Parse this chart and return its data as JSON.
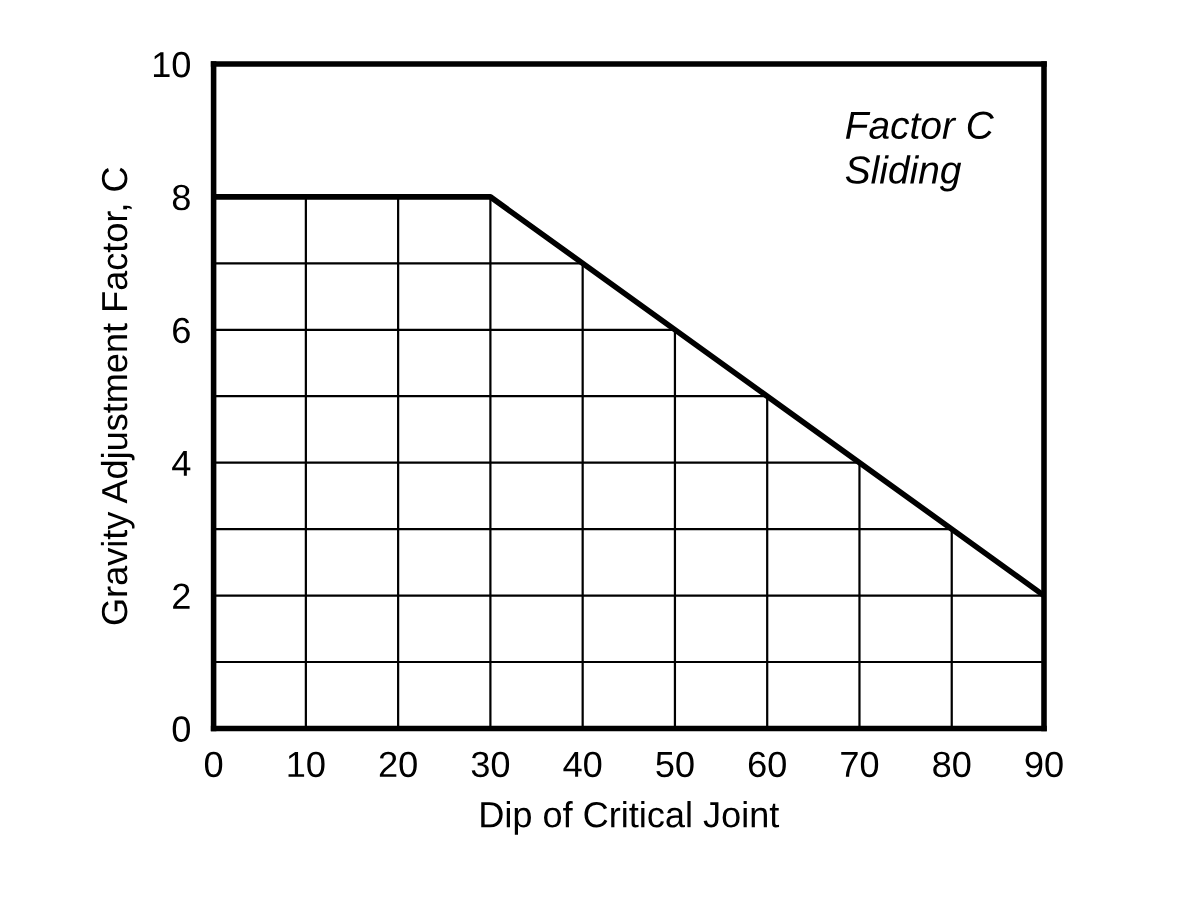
{
  "chart_data": {
    "type": "line",
    "xlabel": "Dip of Critical Joint",
    "ylabel": "Gravity Adjustment Factor, C",
    "x": [
      0,
      30,
      90
    ],
    "series": [
      {
        "color": "#000000",
        "values": [
          8,
          8,
          2
        ]
      }
    ],
    "xlim": [
      0,
      90
    ],
    "xticks": [
      0,
      10,
      20,
      30,
      40,
      50,
      60,
      70,
      80,
      90
    ],
    "ylim": [
      0,
      10
    ],
    "yticks": [
      0,
      {
        "value": 1,
        "label": null
      },
      2,
      {
        "value": 3,
        "label": null
      },
      4,
      {
        "value": 5,
        "label": null
      },
      6,
      {
        "value": 7,
        "label": null
      },
      8,
      10
    ],
    "grid": true,
    "marker": "none",
    "line_style": "solid",
    "annotations": [
      "Factor C\nSliding"
    ]
  }
}
